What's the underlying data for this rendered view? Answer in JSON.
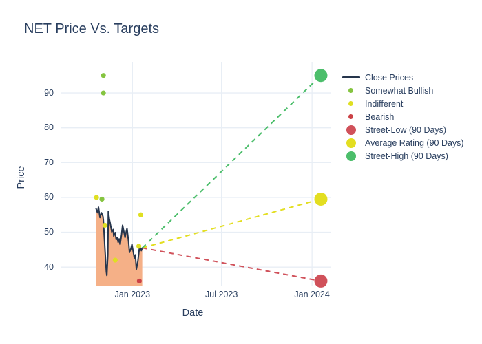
{
  "chart_data": {
    "type": "line+scatter",
    "title": "NET Price Vs. Targets",
    "xlabel": "Date",
    "ylabel": "Price",
    "grid": true,
    "background": "#ffffff",
    "gridline_color": "#e8eef5",
    "xaxis": {
      "ticks": [
        {
          "label": "Jan 2023",
          "date": "2023-01-01"
        },
        {
          "label": "Jul 2023",
          "date": "2023-07-01"
        },
        {
          "label": "Jan 2024",
          "date": "2024-01-01"
        }
      ],
      "range_days_from_2023": [
        -146,
        404
      ]
    },
    "yaxis": {
      "ticks": [
        {
          "value": 40,
          "label": "40"
        },
        {
          "value": 50,
          "label": "50"
        },
        {
          "value": 60,
          "label": "60"
        },
        {
          "value": 70,
          "label": "70"
        },
        {
          "value": 80,
          "label": "80"
        },
        {
          "value": 90,
          "label": "90"
        }
      ],
      "range": [
        34.7,
        98.9
      ]
    },
    "close_prices": {
      "name": "Close Prices",
      "color": "#26354c",
      "fill_color": "#f5b087",
      "dates": [
        "2022-10-19",
        "2022-10-22",
        "2022-10-24",
        "2022-10-27",
        "2022-10-30",
        "2022-11-02",
        "2022-11-03",
        "2022-11-06",
        "2022-11-09",
        "2022-11-10",
        "2022-11-12",
        "2022-11-13",
        "2022-11-15",
        "2022-11-17",
        "2022-11-20",
        "2022-11-23",
        "2022-11-24",
        "2022-11-27",
        "2022-11-29",
        "2022-12-01",
        "2022-12-03",
        "2022-12-05",
        "2022-12-07",
        "2022-12-10",
        "2022-12-12",
        "2022-12-15",
        "2022-12-17",
        "2022-12-19",
        "2022-12-21",
        "2022-12-24",
        "2022-12-26",
        "2022-12-29",
        "2022-12-31",
        "2023-01-02",
        "2023-01-05",
        "2023-01-07",
        "2023-01-09",
        "2023-01-12",
        "2023-01-15",
        "2023-01-16",
        "2023-01-19",
        "2023-01-21"
      ],
      "values": [
        56.8,
        55.6,
        57.2,
        54.2,
        55.6,
        54.6,
        53.4,
        45.5,
        38.6,
        37.6,
        43.5,
        56.0,
        53.8,
        52.5,
        50.1,
        50.8,
        48.9,
        49.9,
        47.9,
        48.5,
        47.1,
        48.1,
        46.5,
        49.5,
        52.0,
        49.9,
        48.5,
        49.9,
        51.1,
        47.5,
        44.2,
        45.3,
        46.5,
        44.9,
        42.6,
        43.5,
        39.4,
        41.6,
        45.3,
        46.0,
        44.7,
        45.5
      ]
    },
    "ratings": [
      {
        "name": "Somewhat Bullish",
        "color": "#85c440",
        "points": [
          {
            "date": "2022-10-31",
            "value": 59.5
          },
          {
            "date": "2022-11-03",
            "value": 95
          },
          {
            "date": "2022-11-03",
            "value": 90
          }
        ]
      },
      {
        "name": "Indifferent",
        "color": "#dfdf22",
        "points": [
          {
            "date": "2022-10-20",
            "value": 60
          },
          {
            "date": "2022-11-06",
            "value": 52
          },
          {
            "date": "2022-11-27",
            "value": 42
          },
          {
            "date": "2023-01-14",
            "value": 46
          },
          {
            "date": "2023-01-18",
            "value": 55
          }
        ]
      },
      {
        "name": "Bearish",
        "color": "#cb4146",
        "points": [
          {
            "date": "2023-01-15",
            "value": 36
          }
        ]
      }
    ],
    "targets": {
      "start": {
        "date": "2023-01-21",
        "value": 45.5
      },
      "end_date": "2024-01-19",
      "series": [
        {
          "name": "Street-Low (90 Days)",
          "value": 36,
          "color": "#d0515a"
        },
        {
          "name": "Average Rating (90 Days)",
          "value": 59.5,
          "color": "#e3de21"
        },
        {
          "name": "Street-High (90 Days)",
          "value": 95,
          "color": "#4cbe6b"
        }
      ]
    },
    "legend": [
      {
        "label": "Close Prices",
        "symbol": "line",
        "color": "#26354c"
      },
      {
        "label": "Somewhat Bullish",
        "symbol": "dot-small",
        "color": "#85c440"
      },
      {
        "label": "Indifferent",
        "symbol": "dot-small",
        "color": "#dfdf22"
      },
      {
        "label": "Bearish",
        "symbol": "dot-small",
        "color": "#cb4146"
      },
      {
        "label": "Street-Low (90 Days)",
        "symbol": "dot-large",
        "color": "#d0515a"
      },
      {
        "label": "Average Rating (90 Days)",
        "symbol": "dot-large",
        "color": "#e3de21"
      },
      {
        "label": "Street-High (90 Days)",
        "symbol": "dot-large",
        "color": "#4cbe6b"
      }
    ]
  }
}
